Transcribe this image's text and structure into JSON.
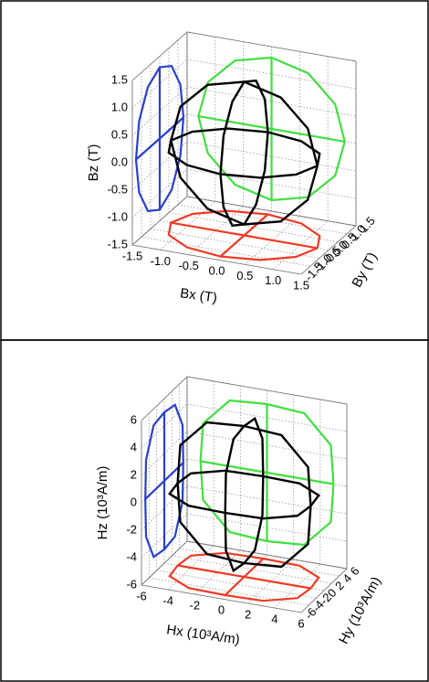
{
  "chart_data": [
    {
      "type": "line3d",
      "xlabel": "Bx (T)",
      "ylabel": "By (T)",
      "zlabel": "Bz (T)",
      "xlim": [
        -1.5,
        1.5
      ],
      "ylim": [
        -1.5,
        1.5
      ],
      "zlim": [
        -1.5,
        1.5
      ],
      "xticks": [
        -1.5,
        {
          "value": -1,
          "label": "-1.0"
        },
        -0.5,
        {
          "value": 0,
          "label": "0.0"
        },
        0.5,
        {
          "value": 1,
          "label": "1.0"
        },
        1.5
      ],
      "yticks": [
        -1.5,
        {
          "value": -1,
          "label": "-1.0"
        },
        -0.5,
        {
          "value": 0,
          "label": "0.0"
        },
        0.5,
        {
          "value": 1,
          "label": "1.0"
        },
        1.5
      ],
      "zticks": [
        -1.5,
        {
          "value": -1,
          "label": "-1.0"
        },
        -0.5,
        {
          "value": 0,
          "label": "0.0"
        },
        0.5,
        {
          "value": 1,
          "label": "1.0"
        },
        1.5
      ],
      "grid": true,
      "projection_colors": {
        "x": "#2a3fd0",
        "y": "#3fe03f",
        "z": "#ee3a24"
      },
      "series": [
        {
          "color": "#000000",
          "x": [
            1.3,
            1.13,
            0.65,
            0,
            -0.65,
            -1.13,
            -1.3,
            -1.13,
            -0.65,
            0,
            0.65,
            1.13,
            1.3
          ],
          "y": [
            0,
            0.65,
            1.13,
            1.3,
            1.13,
            0.65,
            0,
            -0.65,
            -1.13,
            -1.3,
            -1.13,
            -0.65,
            0
          ],
          "z": [
            0,
            0,
            0,
            0,
            0,
            0,
            0,
            0,
            0,
            0,
            0,
            0,
            0
          ]
        },
        {
          "color": "#000000",
          "x": [
            1.3,
            1.13,
            0.65,
            0,
            -0.65,
            -1.13,
            -1.3,
            -1.13,
            -0.65,
            0,
            0.65,
            1.13,
            1.3
          ],
          "y": [
            0,
            0,
            0,
            0,
            0,
            0,
            0,
            0,
            0,
            0,
            0,
            0,
            0
          ],
          "z": [
            0,
            0.65,
            1.13,
            1.3,
            1.13,
            0.65,
            0,
            -0.65,
            -1.13,
            -1.3,
            -1.13,
            -0.65,
            0
          ]
        },
        {
          "color": "#000000",
          "x": [
            0,
            0,
            0,
            0,
            0,
            0,
            0,
            0,
            0,
            0,
            0,
            0,
            0
          ],
          "y": [
            1.3,
            1.13,
            0.65,
            0,
            -0.65,
            -1.13,
            -1.3,
            -1.13,
            -0.65,
            0,
            0.65,
            1.13,
            1.3
          ],
          "z": [
            0,
            0.65,
            1.13,
            1.3,
            1.13,
            0.65,
            0,
            -0.65,
            -1.13,
            -1.3,
            -1.13,
            -0.65,
            0
          ]
        }
      ]
    },
    {
      "type": "line3d",
      "xlabel": "Hx (10³A/m)",
      "ylabel": "Hy (10³A/m)",
      "zlabel": "Hz (10³A/m)",
      "xlim": [
        -6,
        6
      ],
      "ylim": [
        -6,
        6
      ],
      "zlim": [
        -6,
        6
      ],
      "xticks": [
        -6,
        -4,
        -2,
        0,
        2,
        4,
        6
      ],
      "yticks": [
        -6,
        -4,
        -2,
        0,
        2,
        4,
        6
      ],
      "zticks": [
        -6,
        -4,
        -2,
        0,
        2,
        4,
        6
      ],
      "grid": true,
      "projection_colors": {
        "x": "#2a3fd0",
        "y": "#3fe03f",
        "z": "#ee3a24"
      },
      "series": [
        {
          "color": "#000000",
          "x": [
            5,
            4.8,
            2.8,
            0,
            -2.8,
            -4.8,
            -5,
            -4.8,
            -2.8,
            0,
            2.8,
            4.8,
            5
          ],
          "y": [
            0,
            2.8,
            4.8,
            5,
            4.8,
            2.8,
            0,
            -2.8,
            -4.8,
            -5,
            -4.8,
            -2.8,
            0
          ],
          "z": [
            0,
            0,
            0,
            0,
            0,
            0,
            0,
            0,
            0,
            0,
            0,
            0,
            0
          ]
        },
        {
          "color": "#000000",
          "x": [
            5,
            4.8,
            2.8,
            0,
            -2.8,
            -4.8,
            -5,
            -4.8,
            -2.8,
            0,
            2.8,
            4.8,
            5
          ],
          "y": [
            0,
            0,
            0,
            0,
            0,
            0,
            0,
            0,
            0,
            0,
            0,
            0,
            0
          ],
          "z": [
            0,
            2.8,
            4.8,
            5,
            4.8,
            2.8,
            0,
            -2.8,
            -4.8,
            -5,
            -4.8,
            -2.8,
            0
          ]
        },
        {
          "color": "#000000",
          "x": [
            0,
            0,
            0,
            0,
            0,
            0,
            0,
            0,
            0,
            0,
            0,
            0,
            0
          ],
          "y": [
            5,
            4.8,
            2.8,
            0,
            -2.8,
            -4.8,
            -5,
            -4.8,
            -2.8,
            0,
            2.8,
            4.8,
            5
          ],
          "z": [
            0,
            2.8,
            4.8,
            5,
            4.8,
            2.8,
            0,
            -2.8,
            -4.8,
            -5,
            -4.8,
            -2.8,
            0
          ]
        }
      ]
    }
  ]
}
